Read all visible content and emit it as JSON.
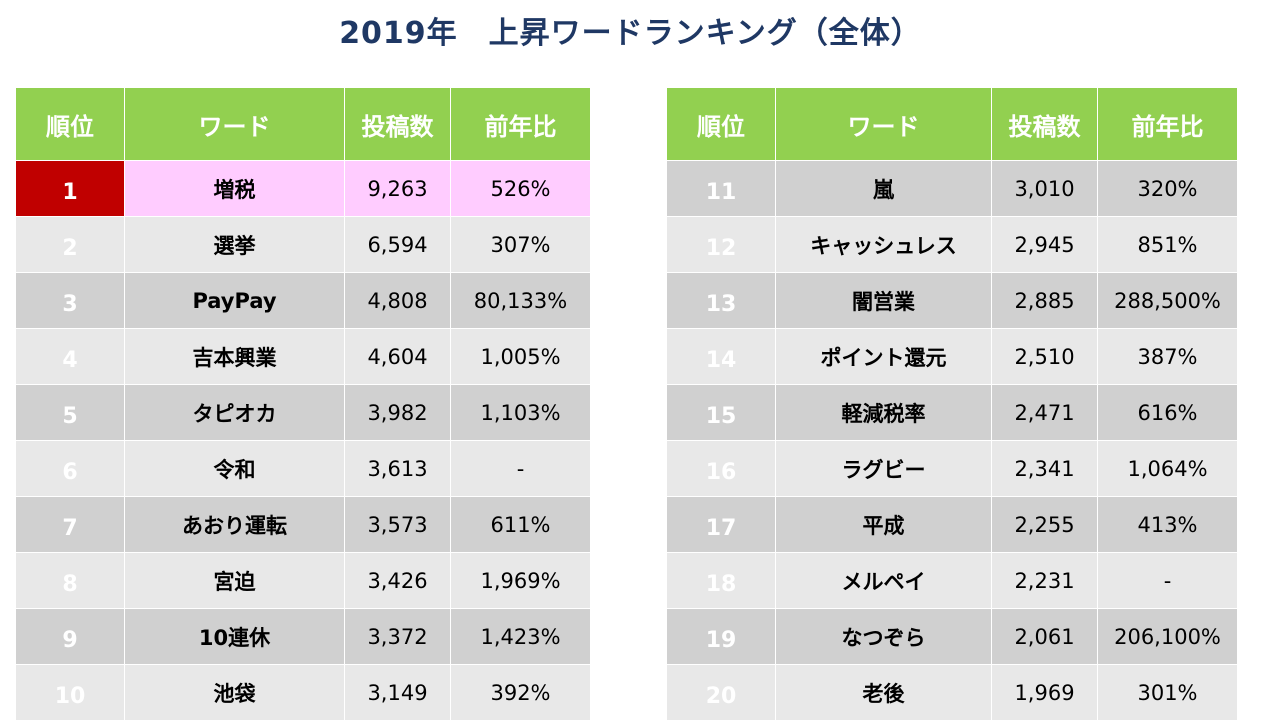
{
  "title": "2019年　上昇ワードランキング（全体）",
  "headers": {
    "rank": "順位",
    "word": "ワード",
    "posts": "投稿数",
    "yoy": "前年比"
  },
  "colors": {
    "header_bg": "#92d050",
    "top_rank_bg": "#c00000",
    "highlight_row_bg": "#ffccff",
    "title": "#1f3864"
  },
  "left_rows": [
    {
      "rank": "1",
      "word": "増税",
      "posts": "9,263",
      "yoy": "526%"
    },
    {
      "rank": "2",
      "word": "選挙",
      "posts": "6,594",
      "yoy": "307%"
    },
    {
      "rank": "3",
      "word": "PayPay",
      "posts": "4,808",
      "yoy": "80,133%"
    },
    {
      "rank": "4",
      "word": "吉本興業",
      "posts": "4,604",
      "yoy": "1,005%"
    },
    {
      "rank": "5",
      "word": "タピオカ",
      "posts": "3,982",
      "yoy": "1,103%"
    },
    {
      "rank": "6",
      "word": "令和",
      "posts": "3,613",
      "yoy": "-"
    },
    {
      "rank": "7",
      "word": "あおり運転",
      "posts": "3,573",
      "yoy": "611%"
    },
    {
      "rank": "8",
      "word": "宮迫",
      "posts": "3,426",
      "yoy": "1,969%"
    },
    {
      "rank": "9",
      "word": "10連休",
      "posts": "3,372",
      "yoy": "1,423%"
    },
    {
      "rank": "10",
      "word": "池袋",
      "posts": "3,149",
      "yoy": "392%"
    }
  ],
  "right_rows": [
    {
      "rank": "11",
      "word": "嵐",
      "posts": "3,010",
      "yoy": "320%"
    },
    {
      "rank": "12",
      "word": "キャッシュレス",
      "posts": "2,945",
      "yoy": "851%"
    },
    {
      "rank": "13",
      "word": "闇営業",
      "posts": "2,885",
      "yoy": "288,500%"
    },
    {
      "rank": "14",
      "word": "ポイント還元",
      "posts": "2,510",
      "yoy": "387%"
    },
    {
      "rank": "15",
      "word": "軽減税率",
      "posts": "2,471",
      "yoy": "616%"
    },
    {
      "rank": "16",
      "word": "ラグビー",
      "posts": "2,341",
      "yoy": "1,064%"
    },
    {
      "rank": "17",
      "word": "平成",
      "posts": "2,255",
      "yoy": "413%"
    },
    {
      "rank": "18",
      "word": "メルペイ",
      "posts": "2,231",
      "yoy": "-"
    },
    {
      "rank": "19",
      "word": "なつぞら",
      "posts": "2,061",
      "yoy": "206,100%"
    },
    {
      "rank": "20",
      "word": "老後",
      "posts": "1,969",
      "yoy": "301%"
    }
  ]
}
